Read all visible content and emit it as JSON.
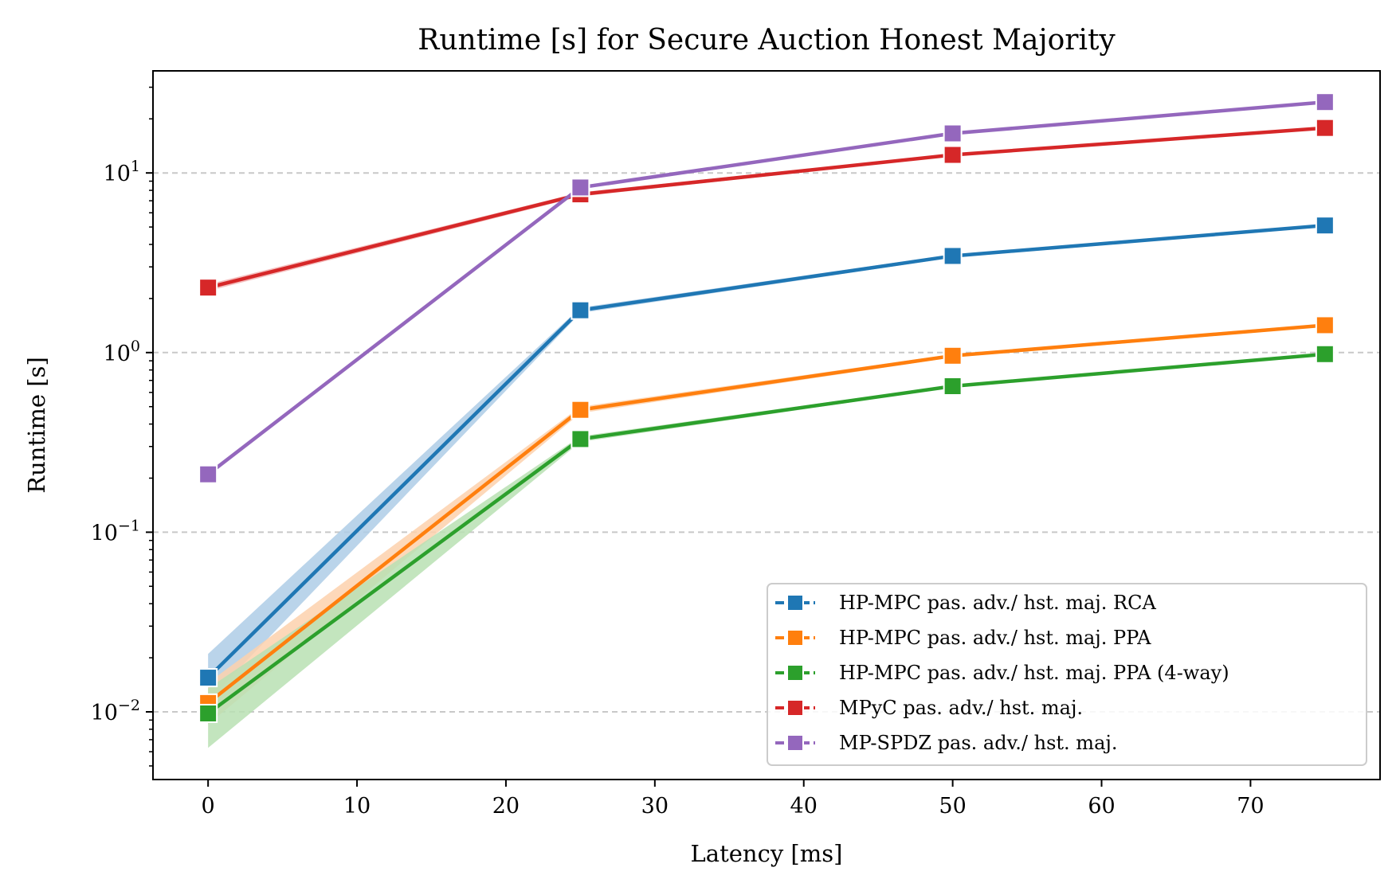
{
  "chart_data": {
    "type": "line",
    "title": "Runtime [s] for Secure Auction Honest Majority",
    "xlabel": "Latency [ms]",
    "ylabel": "Runtime [s]",
    "yscale": "log",
    "xlim": [
      -3.7,
      78.7
    ],
    "ylim": [
      0.0042,
      37
    ],
    "xticks": [
      0,
      10,
      20,
      30,
      40,
      50,
      60,
      70
    ],
    "xtick_labels": [
      "0",
      "10",
      "20",
      "30",
      "40",
      "50",
      "60",
      "70"
    ],
    "yticks": [
      0.01,
      0.1,
      1,
      10
    ],
    "ytick_labels": [
      {
        "base": "10",
        "exp": "−2"
      },
      {
        "base": "10",
        "exp": "−1"
      },
      {
        "base": "10",
        "exp": "0"
      },
      {
        "base": "10",
        "exp": "1"
      }
    ],
    "grid": "horizontal dashed at major y ticks",
    "legend_position": "lower-right",
    "x": [
      0,
      25,
      50,
      75
    ],
    "series": [
      {
        "name": "HP-MPC pas. adv./ hst. maj. RCA",
        "color": "#1f77b4",
        "band_color": "#aecde6",
        "values": [
          0.0155,
          1.72,
          3.45,
          5.1
        ],
        "band_low": [
          0.0115,
          1.66,
          3.38,
          5.0
        ],
        "band_high": [
          0.021,
          1.78,
          3.52,
          5.2
        ]
      },
      {
        "name": "HP-MPC pas. adv./ hst. maj. PPA",
        "color": "#ff7f0e",
        "band_color": "#fdd1ad",
        "values": [
          0.0112,
          0.48,
          0.96,
          1.42
        ],
        "band_low": [
          0.0085,
          0.46,
          0.94,
          1.39
        ],
        "band_high": [
          0.0145,
          0.5,
          0.98,
          1.45
        ]
      },
      {
        "name": "HP-MPC pas. adv./ hst. maj. PPA (4-way)",
        "color": "#2ca02c",
        "band_color": "#b9e0b3",
        "values": [
          0.0098,
          0.33,
          0.65,
          0.98
        ],
        "band_low": [
          0.0063,
          0.318,
          0.64,
          0.97
        ],
        "band_high": [
          0.0135,
          0.342,
          0.66,
          0.99
        ]
      },
      {
        "name": "MPyC pas. adv./ hst. maj.",
        "color": "#d62728",
        "band_color": "#f2b3b3",
        "values": [
          2.3,
          7.6,
          12.6,
          17.8
        ],
        "band_low": [
          2.2,
          7.4,
          12.4,
          17.6
        ],
        "band_high": [
          2.4,
          7.8,
          12.8,
          18.0
        ]
      },
      {
        "name": "MP-SPDZ pas. adv./ hst. maj.",
        "color": "#9467bd",
        "band_color": "#d9c8e8",
        "values": [
          0.21,
          8.3,
          16.6,
          24.8
        ],
        "band_low": [
          0.205,
          8.15,
          16.4,
          24.5
        ],
        "band_high": [
          0.215,
          8.45,
          16.8,
          25.1
        ]
      }
    ]
  }
}
